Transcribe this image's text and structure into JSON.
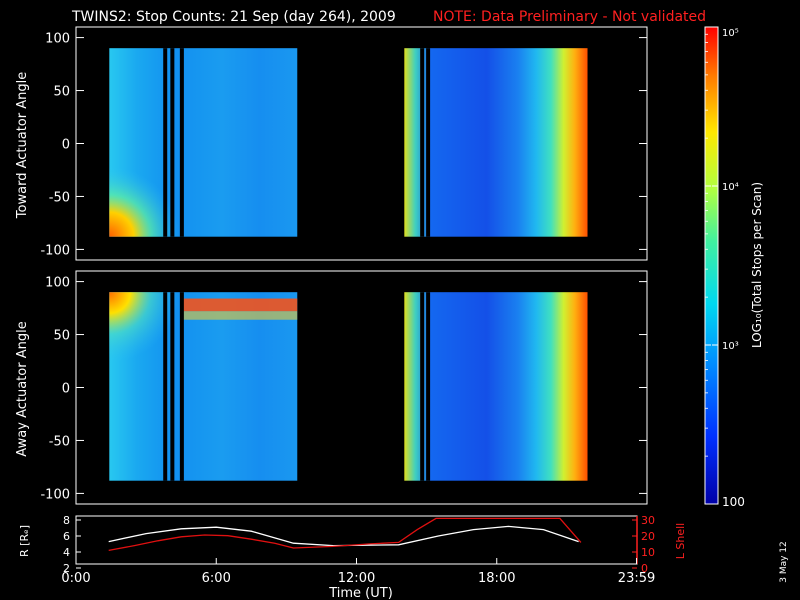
{
  "title": "TWINS2: Stop Counts: 21 Sep (day 264), 2009",
  "note": "NOTE: Data Preliminary - Not validated",
  "colors": {
    "title": "#ffffff",
    "note": "#ff2020",
    "r_curve": "#ffffff",
    "lshell_curve": "#e01010",
    "lshell_axis": "#ff2020"
  },
  "side_stamp": "3 May 12",
  "chart_data": [
    {
      "type": "heatmap",
      "panel": "top",
      "ylabel": "Toward Actuator Angle",
      "ylim": [
        -110,
        110
      ],
      "yticks": [
        100,
        50,
        0,
        -50,
        -100
      ],
      "xlim": [
        0,
        24
      ],
      "data_extent_y": [
        -88,
        90
      ],
      "blocks": [
        {
          "x_start": 1.4,
          "x_end": 9.3
        },
        {
          "x_start": 13.8,
          "x_end": 21.5
        }
      ],
      "gap_lines": [
        3.75,
        4.05,
        4.45,
        14.55,
        14.8
      ]
    },
    {
      "type": "heatmap",
      "panel": "bottom",
      "ylabel": "Away Actuator Angle",
      "ylim": [
        -110,
        110
      ],
      "yticks": [
        100,
        50,
        0,
        -50,
        -100
      ],
      "xlim": [
        0,
        24
      ],
      "data_extent_y": [
        -88,
        90
      ],
      "blocks": [
        {
          "x_start": 1.4,
          "x_end": 9.3
        },
        {
          "x_start": 13.8,
          "x_end": 21.5
        }
      ],
      "gap_lines": [
        3.75,
        4.05,
        4.45,
        14.55,
        14.8
      ]
    },
    {
      "type": "line",
      "panel": "orbit",
      "ylabel": "R [Rₑ]",
      "ylabel_right": "L Shell",
      "ylim": [
        2,
        8
      ],
      "yticks": [
        2,
        4,
        6,
        8
      ],
      "ylim_right": [
        0,
        30
      ],
      "yticks_right": [
        0,
        10,
        20,
        30
      ],
      "xlabel": "Time (UT)",
      "xlim": [
        0,
        24
      ],
      "xticks": [
        0,
        6,
        12,
        18,
        23.98
      ],
      "xtick_labels": [
        "0:00",
        "6:00",
        "12:00",
        "18:00",
        "23:59"
      ],
      "series": [
        {
          "axis": "left",
          "x": [
            1.4,
            3,
            4.5,
            6,
            7.5,
            9.3,
            11,
            13.8,
            15.5,
            17,
            18.5,
            20,
            21.5
          ],
          "y": [
            5.3,
            6.3,
            6.9,
            7.1,
            6.6,
            5.1,
            4.8,
            4.9,
            6.0,
            6.8,
            7.2,
            6.8,
            5.3
          ]
        },
        {
          "axis": "right",
          "x": [
            1.4,
            2.5,
            3.5,
            4.5,
            5.5,
            6.5,
            7.5,
            8.5,
            9.3,
            11,
            12.5,
            13.8,
            14.6,
            15.4,
            20.7,
            21.6
          ],
          "y": [
            11,
            14,
            17,
            19.5,
            20.6,
            20.2,
            18,
            15.5,
            12.5,
            13.5,
            15,
            16,
            24,
            31,
            31,
            16
          ]
        }
      ]
    }
  ],
  "colorbar": {
    "label": "LOG₁₀(Total Stops per Scan)",
    "scale": "log",
    "range": [
      100,
      100000
    ],
    "tick_labels": [
      "10⁵",
      "10⁴",
      "10³",
      "100"
    ],
    "tick_values": [
      100000,
      10000,
      1000,
      100
    ]
  }
}
